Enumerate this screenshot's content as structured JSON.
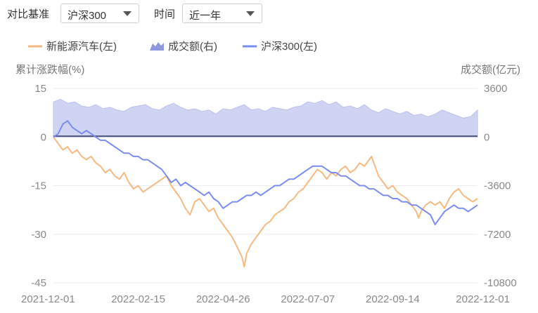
{
  "controls": {
    "benchmark_label": "对比基准",
    "benchmark_value": "沪深300",
    "period_label": "时间",
    "period_value": "近一年"
  },
  "chart_data": {
    "type": "line",
    "x_ticks": [
      "2021-12-01",
      "2022-02-15",
      "2022-04-26",
      "2022-07-07",
      "2022-09-14",
      "2022-12-01"
    ],
    "left_axis": {
      "title": "累计涨跌幅(%)",
      "ticks": [
        "15",
        "0",
        "-15",
        "-30",
        "-45"
      ],
      "range": [
        -45,
        15
      ]
    },
    "right_axis": {
      "title": "成交额(亿元)",
      "ticks": [
        "3600",
        "0",
        "-3600",
        "-7200",
        "-10800"
      ],
      "range": [
        -10800,
        3600
      ]
    },
    "legend": [
      {
        "name": "新能源汽车(左)",
        "kind": "line",
        "color": "#f8b981"
      },
      {
        "name": "成交额(右)",
        "kind": "area",
        "color": "#c8cdf1"
      },
      {
        "name": "沪深300(左)",
        "kind": "line",
        "color": "#7b8cf0"
      }
    ],
    "series": [
      {
        "name": "新能源汽车(左)",
        "axis": "left",
        "color": "#f8b981",
        "points": [
          [
            0,
            0
          ],
          [
            2,
            -2
          ],
          [
            4,
            -4
          ],
          [
            6,
            -3
          ],
          [
            8,
            -5
          ],
          [
            10,
            -4
          ],
          [
            12,
            -6
          ],
          [
            14,
            -7
          ],
          [
            16,
            -6
          ],
          [
            18,
            -8
          ],
          [
            20,
            -9
          ],
          [
            22,
            -11
          ],
          [
            24,
            -10
          ],
          [
            26,
            -12
          ],
          [
            28,
            -13
          ],
          [
            30,
            -11
          ],
          [
            32,
            -14
          ],
          [
            34,
            -16
          ],
          [
            36,
            -15
          ],
          [
            38,
            -17
          ],
          [
            40,
            -16
          ],
          [
            42,
            -15
          ],
          [
            44,
            -14
          ],
          [
            46,
            -13
          ],
          [
            48,
            -12
          ],
          [
            50,
            -15
          ],
          [
            52,
            -17
          ],
          [
            54,
            -19
          ],
          [
            56,
            -22
          ],
          [
            58,
            -24
          ],
          [
            60,
            -20
          ],
          [
            62,
            -19
          ],
          [
            64,
            -21
          ],
          [
            66,
            -23
          ],
          [
            68,
            -22
          ],
          [
            70,
            -25
          ],
          [
            72,
            -27
          ],
          [
            74,
            -29
          ],
          [
            76,
            -31
          ],
          [
            78,
            -34
          ],
          [
            80,
            -37
          ],
          [
            81,
            -40
          ],
          [
            82,
            -36
          ],
          [
            84,
            -33
          ],
          [
            86,
            -31
          ],
          [
            88,
            -29
          ],
          [
            90,
            -27
          ],
          [
            92,
            -26
          ],
          [
            94,
            -24
          ],
          [
            96,
            -23
          ],
          [
            98,
            -22
          ],
          [
            100,
            -20
          ],
          [
            102,
            -19
          ],
          [
            104,
            -17
          ],
          [
            106,
            -16
          ],
          [
            108,
            -14
          ],
          [
            110,
            -12
          ],
          [
            112,
            -10
          ],
          [
            114,
            -11
          ],
          [
            116,
            -13
          ],
          [
            118,
            -11
          ],
          [
            120,
            -12
          ],
          [
            122,
            -10
          ],
          [
            124,
            -9
          ],
          [
            126,
            -11
          ],
          [
            128,
            -10
          ],
          [
            130,
            -8
          ],
          [
            132,
            -9
          ],
          [
            134,
            -7
          ],
          [
            135,
            -6
          ],
          [
            136,
            -8
          ],
          [
            138,
            -12
          ],
          [
            140,
            -14
          ],
          [
            142,
            -16
          ],
          [
            144,
            -15
          ],
          [
            146,
            -17
          ],
          [
            148,
            -18
          ],
          [
            150,
            -19
          ],
          [
            152,
            -21
          ],
          [
            154,
            -23
          ],
          [
            155,
            -25
          ],
          [
            156,
            -23
          ],
          [
            158,
            -21
          ],
          [
            160,
            -20
          ],
          [
            162,
            -21
          ],
          [
            164,
            -20
          ],
          [
            166,
            -22
          ],
          [
            168,
            -19
          ],
          [
            170,
            -17
          ],
          [
            172,
            -16
          ],
          [
            174,
            -18
          ],
          [
            176,
            -19
          ],
          [
            178,
            -20
          ],
          [
            180,
            -19
          ]
        ]
      },
      {
        "name": "沪深300(左)",
        "axis": "left",
        "color": "#7b8cf0",
        "points": [
          [
            0,
            0
          ],
          [
            2,
            1
          ],
          [
            4,
            4
          ],
          [
            6,
            5
          ],
          [
            8,
            3
          ],
          [
            10,
            2
          ],
          [
            12,
            1
          ],
          [
            14,
            2
          ],
          [
            16,
            1
          ],
          [
            18,
            0
          ],
          [
            20,
            -1
          ],
          [
            22,
            -1
          ],
          [
            24,
            -2
          ],
          [
            26,
            -3
          ],
          [
            28,
            -4
          ],
          [
            30,
            -5
          ],
          [
            32,
            -5
          ],
          [
            34,
            -6
          ],
          [
            36,
            -6
          ],
          [
            38,
            -7
          ],
          [
            40,
            -7
          ],
          [
            42,
            -8
          ],
          [
            44,
            -9
          ],
          [
            46,
            -10
          ],
          [
            48,
            -12
          ],
          [
            50,
            -14
          ],
          [
            52,
            -13
          ],
          [
            54,
            -15
          ],
          [
            56,
            -14
          ],
          [
            58,
            -15
          ],
          [
            60,
            -16
          ],
          [
            62,
            -17
          ],
          [
            64,
            -18
          ],
          [
            66,
            -17
          ],
          [
            68,
            -19
          ],
          [
            70,
            -20
          ],
          [
            72,
            -22
          ],
          [
            74,
            -21
          ],
          [
            76,
            -20
          ],
          [
            78,
            -20
          ],
          [
            80,
            -19
          ],
          [
            82,
            -18
          ],
          [
            84,
            -18
          ],
          [
            86,
            -17
          ],
          [
            88,
            -18
          ],
          [
            90,
            -17
          ],
          [
            92,
            -16
          ],
          [
            94,
            -15
          ],
          [
            96,
            -15
          ],
          [
            98,
            -14
          ],
          [
            100,
            -13
          ],
          [
            102,
            -13
          ],
          [
            104,
            -12
          ],
          [
            106,
            -11
          ],
          [
            108,
            -10
          ],
          [
            110,
            -9
          ],
          [
            112,
            -9
          ],
          [
            114,
            -9
          ],
          [
            116,
            -10
          ],
          [
            118,
            -11
          ],
          [
            120,
            -11
          ],
          [
            122,
            -12
          ],
          [
            124,
            -12
          ],
          [
            126,
            -13
          ],
          [
            128,
            -14
          ],
          [
            130,
            -15
          ],
          [
            132,
            -15
          ],
          [
            134,
            -16
          ],
          [
            136,
            -16
          ],
          [
            138,
            -17
          ],
          [
            140,
            -18
          ],
          [
            142,
            -18
          ],
          [
            144,
            -19
          ],
          [
            146,
            -19
          ],
          [
            148,
            -20
          ],
          [
            150,
            -20
          ],
          [
            152,
            -21
          ],
          [
            154,
            -21
          ],
          [
            156,
            -22
          ],
          [
            158,
            -23
          ],
          [
            160,
            -24
          ],
          [
            162,
            -27
          ],
          [
            164,
            -25
          ],
          [
            166,
            -23
          ],
          [
            168,
            -22
          ],
          [
            170,
            -21
          ],
          [
            172,
            -22
          ],
          [
            174,
            -22
          ],
          [
            176,
            -23
          ],
          [
            178,
            -22
          ],
          [
            180,
            -21
          ]
        ]
      },
      {
        "name": "成交额(右)",
        "axis": "right",
        "color": "#c8cdf1",
        "points": [
          [
            0,
            2600
          ],
          [
            3,
            2800
          ],
          [
            6,
            2500
          ],
          [
            9,
            2600
          ],
          [
            12,
            2300
          ],
          [
            15,
            2200
          ],
          [
            18,
            2400
          ],
          [
            21,
            2100
          ],
          [
            24,
            2200
          ],
          [
            27,
            2000
          ],
          [
            30,
            1900
          ],
          [
            33,
            2200
          ],
          [
            36,
            2300
          ],
          [
            39,
            2400
          ],
          [
            42,
            2100
          ],
          [
            45,
            2000
          ],
          [
            48,
            2300
          ],
          [
            51,
            2500
          ],
          [
            54,
            2200
          ],
          [
            57,
            2000
          ],
          [
            60,
            2100
          ],
          [
            63,
            1900
          ],
          [
            66,
            2000
          ],
          [
            69,
            1700
          ],
          [
            72,
            2100
          ],
          [
            75,
            2000
          ],
          [
            78,
            2200
          ],
          [
            81,
            2400
          ],
          [
            84,
            2000
          ],
          [
            87,
            2100
          ],
          [
            90,
            1900
          ],
          [
            93,
            2200
          ],
          [
            96,
            2100
          ],
          [
            99,
            2000
          ],
          [
            102,
            2200
          ],
          [
            105,
            2300
          ],
          [
            108,
            2600
          ],
          [
            111,
            2500
          ],
          [
            114,
            2700
          ],
          [
            117,
            2400
          ],
          [
            120,
            2600
          ],
          [
            123,
            2200
          ],
          [
            126,
            2300
          ],
          [
            129,
            2100
          ],
          [
            132,
            2400
          ],
          [
            135,
            2000
          ],
          [
            138,
            1800
          ],
          [
            141,
            2100
          ],
          [
            144,
            1900
          ],
          [
            147,
            1700
          ],
          [
            150,
            1900
          ],
          [
            153,
            1600
          ],
          [
            156,
            1700
          ],
          [
            159,
            1500
          ],
          [
            162,
            1700
          ],
          [
            165,
            2000
          ],
          [
            168,
            1800
          ],
          [
            171,
            1600
          ],
          [
            174,
            1400
          ],
          [
            177,
            1500
          ],
          [
            180,
            2000
          ]
        ]
      }
    ],
    "x_domain": [
      0,
      180
    ]
  }
}
